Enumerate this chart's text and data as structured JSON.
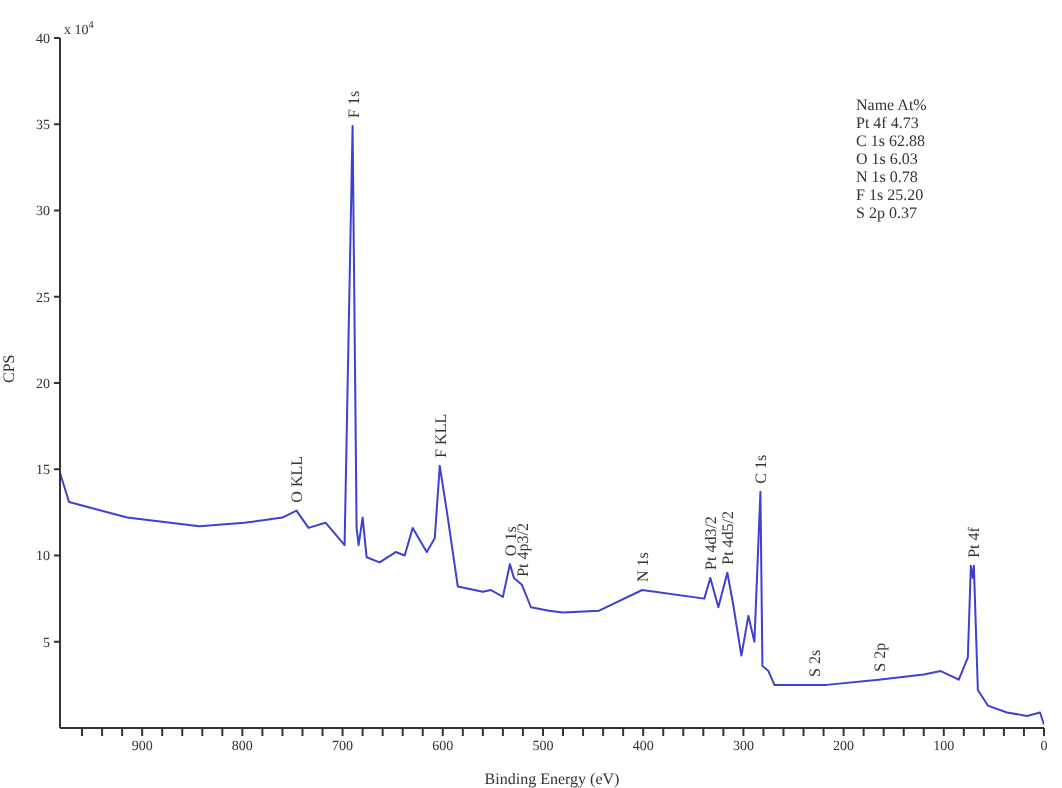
{
  "chart_data": {
    "type": "line",
    "xlabel": "Binding Energy (eV)",
    "ylabel": "CPS",
    "x": [
      982,
      973,
      915,
      843,
      798,
      760,
      746,
      734,
      717,
      698,
      690,
      686,
      684,
      680,
      676,
      663,
      647,
      638,
      630,
      616,
      608,
      603,
      595,
      585,
      560,
      552,
      540,
      533,
      529,
      521,
      512,
      494,
      480,
      444,
      401,
      339,
      333,
      325,
      316,
      310,
      302,
      295,
      289,
      283,
      281,
      275,
      269,
      217,
      165,
      120,
      103,
      85,
      76,
      73,
      71,
      70,
      66,
      56,
      37,
      17,
      4,
      0
    ],
    "series": [
      {
        "color": "#4040d0",
        "values": [
          14.8,
          13.1,
          12.2,
          11.7,
          11.9,
          12.2,
          12.6,
          11.6,
          11.9,
          10.6,
          34.9,
          11.6,
          10.6,
          12.2,
          9.9,
          9.6,
          10.2,
          10,
          11.6,
          10.2,
          11,
          15.2,
          12.2,
          8.2,
          7.9,
          8,
          7.6,
          9.5,
          8.7,
          8.3,
          7,
          6.8,
          6.7,
          6.8,
          8,
          7.5,
          8.7,
          7,
          9,
          7.1,
          4.2,
          6.5,
          5,
          13.7,
          3.6,
          3.3,
          2.5,
          2.5,
          2.8,
          3.1,
          3.3,
          2.8,
          4.1,
          9.4,
          8.7,
          9.4,
          2.2,
          1.3,
          0.9,
          0.7,
          0.9,
          0.2
        ]
      }
    ],
    "xlim": [
      982,
      0
    ],
    "xticks": [
      {
        "value": 960,
        "label": null
      },
      {
        "value": 940,
        "label": null
      },
      {
        "value": 920,
        "label": null
      },
      900,
      {
        "value": 880,
        "label": null
      },
      {
        "value": 860,
        "label": null
      },
      {
        "value": 840,
        "label": null
      },
      {
        "value": 820,
        "label": null
      },
      800,
      {
        "value": 780,
        "label": null
      },
      {
        "value": 760,
        "label": null
      },
      {
        "value": 740,
        "label": null
      },
      {
        "value": 720,
        "label": null
      },
      700,
      {
        "value": 680,
        "label": null
      },
      {
        "value": 660,
        "label": null
      },
      {
        "value": 640,
        "label": null
      },
      {
        "value": 620,
        "label": null
      },
      600,
      {
        "value": 580,
        "label": null
      },
      {
        "value": 560,
        "label": null
      },
      {
        "value": 540,
        "label": null
      },
      {
        "value": 520,
        "label": null
      },
      500,
      {
        "value": 480,
        "label": null
      },
      {
        "value": 460,
        "label": null
      },
      {
        "value": 440,
        "label": null
      },
      {
        "value": 420,
        "label": null
      },
      400,
      {
        "value": 380,
        "label": null
      },
      {
        "value": 360,
        "label": null
      },
      {
        "value": 340,
        "label": null
      },
      {
        "value": 320,
        "label": null
      },
      300,
      {
        "value": 280,
        "label": null
      },
      {
        "value": 260,
        "label": null
      },
      {
        "value": 240,
        "label": null
      },
      {
        "value": 220,
        "label": null
      },
      200,
      {
        "value": 180,
        "label": null
      },
      {
        "value": 160,
        "label": null
      },
      {
        "value": 140,
        "label": null
      },
      {
        "value": 120,
        "label": null
      },
      100,
      {
        "value": 80,
        "label": null
      },
      {
        "value": 60,
        "label": null
      },
      {
        "value": 40,
        "label": null
      },
      {
        "value": 20,
        "label": null
      },
      0
    ],
    "ylim": [
      0,
      40
    ],
    "yticks": [
      5,
      10,
      15,
      20,
      25,
      30,
      35,
      40
    ],
    "marker": "none",
    "line_style": "solid",
    "annotations": [
      "x 10$^{4}$",
      "Name At%",
      "Pt 4f 4.73",
      "C 1s 62.88",
      "O 1s 6.03",
      "N 1s 0.78",
      "F 1s 25.20",
      "S 2p 0.37",
      {
        "text": "O KLL",
        "x": 746,
        "y": 12.6
      },
      {
        "text": "F 1s",
        "x": 690,
        "y": 34.9
      },
      {
        "text": "F KLL",
        "x": 603,
        "y": 15.2
      },
      {
        "text": "O 1s",
        "x": 533,
        "y": 9.5
      },
      {
        "text": "Pt 4p3/2",
        "x": 521,
        "y": 8.3
      },
      {
        "text": "N 1s",
        "x": 401,
        "y": 8
      },
      {
        "text": "Pt 4d3/2",
        "x": 333,
        "y": 8.7
      },
      {
        "text": "Pt 4d5/2",
        "x": 316,
        "y": 9
      },
      {
        "text": "C 1s",
        "x": 283,
        "y": 13.7
      },
      {
        "text": "S 2s",
        "x": 230,
        "y": 2.5
      },
      {
        "text": "S 2p",
        "x": 165,
        "y": 2.8
      },
      {
        "text": "Pt 4f",
        "x": 71,
        "y": 9.4
      }
    ]
  }
}
